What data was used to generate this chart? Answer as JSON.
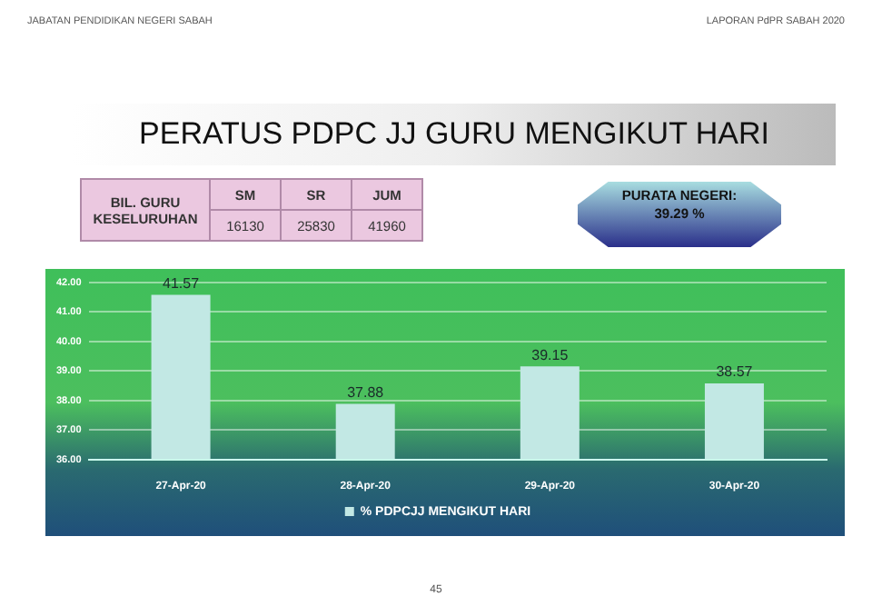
{
  "chart_data": {
    "type": "bar",
    "title": "PERATUS PDPC JJ GURU MENGIKUT HARI",
    "categories": [
      "27-Apr-20",
      "28-Apr-20",
      "29-Apr-20",
      "30-Apr-20"
    ],
    "series": [
      {
        "name": "% PDPCJJ MENGIKUT HARI",
        "color": "#c2e8e4",
        "values": [
          41.57,
          37.88,
          39.15,
          38.57
        ]
      }
    ],
    "ylim": [
      36,
      42
    ],
    "yticks": [
      {
        "value": 36,
        "label": "36.00"
      },
      {
        "value": 37,
        "label": "37.00"
      },
      {
        "value": 38,
        "label": "38.00"
      },
      {
        "value": 39,
        "label": "39.00"
      },
      {
        "value": 40,
        "label": "40.00"
      },
      {
        "value": 41,
        "label": "41.00"
      },
      {
        "value": 42,
        "label": "42.00"
      }
    ],
    "grid": "y",
    "legend": "bottom",
    "data_labels": true,
    "annotations": [
      "JABATAN PENDIDIKAN NEGERI SABAH",
      "LAPORAN PdPR SABAH 2020",
      "BIL. GURU KESELURUHAN",
      "SM",
      "SR",
      "JUM",
      "16130",
      "25830",
      "41960",
      "PURATA NEGERI:\n39.29 %",
      "45"
    ]
  }
}
